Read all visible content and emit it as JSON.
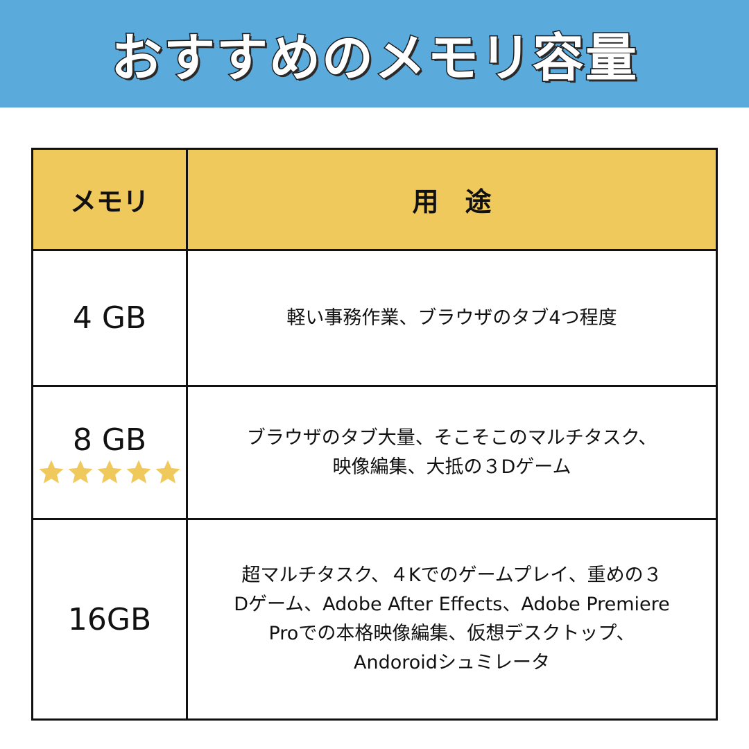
{
  "title": "おすすめのメモリ容量",
  "table": {
    "headers": [
      "メモリ",
      "用　途"
    ],
    "rows": [
      {
        "memory": "4 GB",
        "usage_lines": [
          "軽い事務作業、ブラウザのタブ4つ程度"
        ]
      },
      {
        "memory": "8 GB",
        "rating": 5,
        "rating_max": 5,
        "usage_lines": [
          "ブラウザのタブ大量、そこそこのマルチタスク、",
          "映像編集、大抵の３Dゲーム"
        ]
      },
      {
        "memory": "16GB",
        "usage_lines": [
          "超マルチタスク、４Kでのゲームプレイ、重めの３",
          "Dゲーム、Adobe After Effects、Adobe Premiere",
          "Proでの本格映像編集、仮想デスクトップ、",
          "Andoroidシュミレータ"
        ]
      }
    ]
  },
  "colors": {
    "banner": "#5aaadb",
    "header": "#f0c95c",
    "star": "#f0c95c"
  }
}
